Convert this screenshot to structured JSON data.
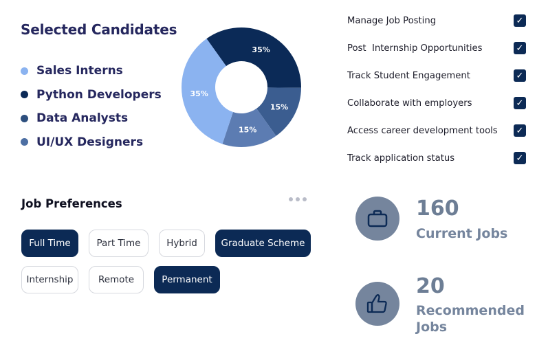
{
  "selected_candidates": {
    "title": "Selected Candidates",
    "legend": [
      {
        "label": "Sales Interns",
        "color": "#8bb3f0"
      },
      {
        "label": "Python Developers",
        "color": "#0b2a57"
      },
      {
        "label": "Data Analysts",
        "color": "#2d4f7e"
      },
      {
        "label": "UI/UX Designers",
        "color": "#4d6fa3"
      }
    ]
  },
  "chart_data": {
    "type": "pie",
    "slices": [
      {
        "label": "Python Developers",
        "value": 35,
        "display": "35%",
        "color": "#0b2a57"
      },
      {
        "label": "Data Analysts",
        "value": 15,
        "display": "15%",
        "color": "#3b5d90"
      },
      {
        "label": "UI/UX Designers",
        "value": 15,
        "display": "15%",
        "color": "#5c7cb2"
      },
      {
        "label": "Sales Interns",
        "value": 35,
        "display": "35%",
        "color": "#8bb3f0"
      }
    ]
  },
  "checklist": [
    {
      "label": "Manage Job Posting",
      "checked": true
    },
    {
      "label": "Post  Internship Opportunities",
      "checked": true
    },
    {
      "label": "Track Student Engagement",
      "checked": true
    },
    {
      "label": "Collaborate with employers",
      "checked": true
    },
    {
      "label": "Access career development tools",
      "checked": true
    },
    {
      "label": "Track application status",
      "checked": true
    }
  ],
  "job_preferences": {
    "title": "Job Preferences",
    "chips": [
      {
        "label": "Full Time",
        "selected": true
      },
      {
        "label": "Part Time",
        "selected": false
      },
      {
        "label": "Hybrid",
        "selected": false
      },
      {
        "label": "Graduate Scheme",
        "selected": true
      },
      {
        "label": "Internship",
        "selected": false
      },
      {
        "label": "Remote",
        "selected": false
      },
      {
        "label": "Permanent",
        "selected": true
      }
    ]
  },
  "stats": {
    "current_jobs": {
      "value": "160",
      "label": "Current Jobs",
      "icon": "briefcase-icon"
    },
    "recommended_jobs": {
      "value": "20",
      "label_line1": "Recommended",
      "label_line2": "Jobs",
      "icon": "thumbs-up-icon"
    }
  }
}
